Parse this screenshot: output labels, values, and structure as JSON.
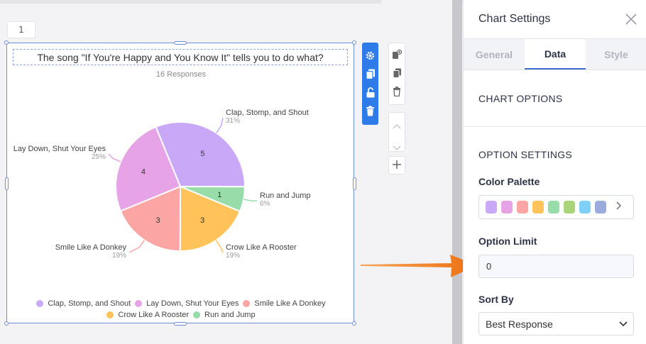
{
  "page": {
    "tab_number": "1"
  },
  "chart": {
    "title": "The song \"If You're Happy and You Know It\" tells you to do what?",
    "responses": "16 Responses"
  },
  "chart_data": {
    "type": "pie",
    "title": "The song \"If You're Happy and You Know It\" tells you to do what?",
    "slices": [
      {
        "label": "Clap, Stomp, and Shout",
        "value": 5,
        "percent": "31%",
        "color": "#c9a9f7"
      },
      {
        "label": "Run and Jump",
        "value": 1,
        "percent": "6%",
        "color": "#98dcaa"
      },
      {
        "label": "Crow Like A Rooster",
        "value": 3,
        "percent": "19%",
        "color": "#ffc35a"
      },
      {
        "label": "Smile Like A Donkey",
        "value": 3,
        "percent": "19%",
        "color": "#fca5a5"
      },
      {
        "label": "Lay Down, Shut Your Eyes",
        "value": 4,
        "percent": "25%",
        "color": "#e6a3e6"
      }
    ],
    "legend": [
      {
        "label": "Clap, Stomp, and Shout",
        "color": "#c9a9f7"
      },
      {
        "label": "Lay Down, Shut Your Eyes",
        "color": "#e6a3e6"
      },
      {
        "label": "Smile Like A Donkey",
        "color": "#fca5a5"
      },
      {
        "label": "Crow Like A Rooster",
        "color": "#ffc35a"
      },
      {
        "label": "Run and Jump",
        "color": "#98dcaa"
      }
    ],
    "legend_placement": "bottom"
  },
  "toolbar": {
    "icons": [
      "gear-icon",
      "duplicate-icon",
      "unlock-icon",
      "trash-icon"
    ]
  },
  "side_tools": {
    "icons": [
      "add-page-icon",
      "copy-icon",
      "delete-icon",
      "chevron-up-icon",
      "chevron-down-icon",
      "plus-icon"
    ]
  },
  "panel": {
    "title": "Chart Settings",
    "tabs": [
      {
        "label": "General",
        "active": false
      },
      {
        "label": "Data",
        "active": true
      },
      {
        "label": "Style",
        "active": false
      }
    ],
    "chart_options_heading": "CHART OPTIONS",
    "option_settings_heading": "OPTION SETTINGS",
    "color_palette_label": "Color Palette",
    "palette_colors": [
      "#c9a9f7",
      "#e6a3e6",
      "#fca5a5",
      "#ffc35a",
      "#98dcaa",
      "#aad47a",
      "#7fd0f7",
      "#9aabdc"
    ],
    "option_limit_label": "Option Limit",
    "option_limit_value": "0",
    "sort_by_label": "Sort By",
    "sort_by_value": "Best Response"
  },
  "colors": {
    "accent": "#2d7ae8",
    "arrow": "#f07a1a",
    "selection": "#6f8ed9"
  }
}
